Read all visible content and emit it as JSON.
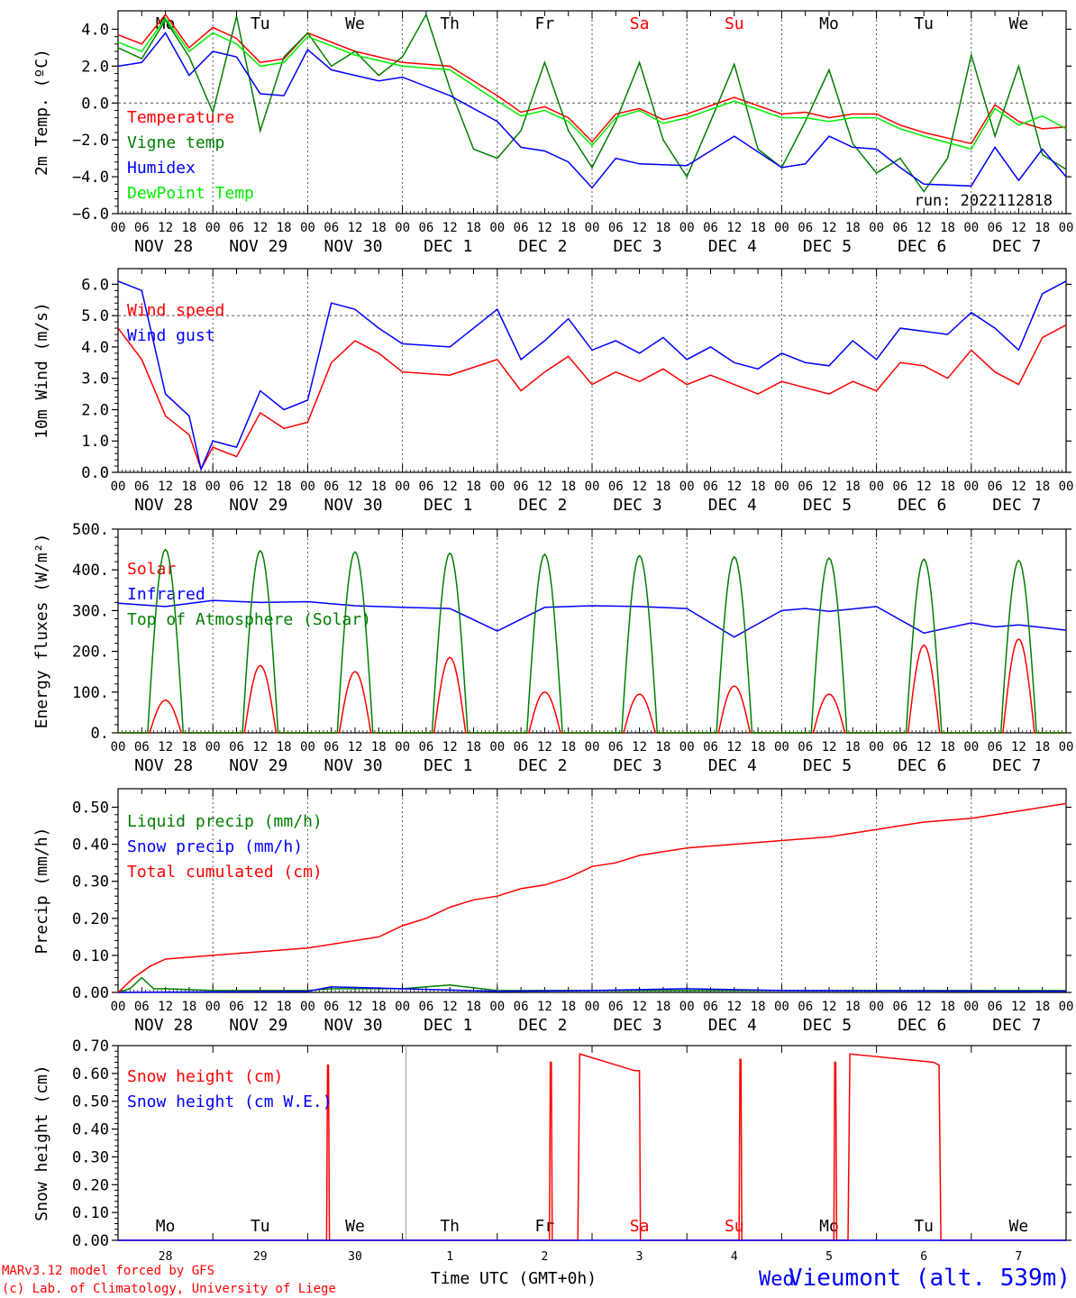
{
  "meta": {
    "run_label": "run: 2022112818",
    "station_title": "Vieumont (alt. 539m)",
    "footer_line1": "MARv3.12 model forced by GFS",
    "footer_line2": "(c) Lab. of Climatology, University of Liege",
    "time_axis_label": "Time UTC (GMT+0h)",
    "station_overlay": "Wed"
  },
  "colors": {
    "red": "#ff0000",
    "dark_green": "#007f00",
    "blue": "#0000ff",
    "light_green": "#00ee00",
    "grid": "#555555",
    "axis": "#000000"
  },
  "axis": {
    "days": 10,
    "hour_ticks": [
      "00",
      "06",
      "12",
      "18"
    ],
    "day_labels": [
      "NOV 28",
      "NOV 29",
      "NOV 30",
      "DEC  1",
      "DEC  2",
      "DEC  3",
      "DEC  4",
      "DEC  5",
      "DEC  6",
      "DEC  7"
    ],
    "weekdays": [
      "Mo",
      "Tu",
      "We",
      "Th",
      "Fr",
      "Sa",
      "Su",
      "Mo",
      "Tu",
      "We"
    ],
    "weekday_colors": [
      "#000000",
      "#000000",
      "#000000",
      "#000000",
      "#000000",
      "#ff0000",
      "#ff0000",
      "#000000",
      "#000000",
      "#000000"
    ],
    "day_numbers": [
      "28",
      "29",
      "30",
      "1",
      "2",
      "3",
      "4",
      "5",
      "6",
      "7"
    ]
  },
  "chart_data": [
    {
      "type": "line",
      "ylabel": "2m Temp. (ºC)",
      "ylim": [
        -6,
        5
      ],
      "yticks": [
        4,
        2,
        0,
        -2,
        -4,
        -6
      ],
      "ytick_labels": [
        "4.0",
        "2.0",
        "0.0",
        "−2.0",
        "−4.0",
        "−6.0"
      ],
      "ref_lines": [
        0
      ],
      "x_units": "hours from Nov 28 00 UTC",
      "series": [
        {
          "name": "Temperature",
          "color": "#ff0000",
          "x": [
            0,
            6,
            12,
            18,
            24,
            30,
            36,
            42,
            48,
            60,
            72,
            84,
            96,
            102,
            108,
            114,
            120,
            126,
            132,
            138,
            144,
            156,
            168,
            174,
            180,
            186,
            192,
            198,
            204,
            216,
            222,
            228,
            234,
            240
          ],
          "y": [
            3.7,
            3.2,
            4.8,
            3.0,
            4.1,
            3.5,
            2.2,
            2.4,
            3.8,
            2.8,
            2.2,
            2.0,
            0.4,
            -0.5,
            -0.2,
            -0.8,
            -2.1,
            -0.6,
            -0.3,
            -0.9,
            -0.6,
            0.3,
            -0.6,
            -0.5,
            -0.8,
            -0.6,
            -0.6,
            -1.2,
            -1.6,
            -2.2,
            -0.1,
            -1.0,
            -1.4,
            -1.3
          ]
        },
        {
          "name": "Vigne temp",
          "color": "#007f00",
          "x": [
            0,
            6,
            12,
            18,
            24,
            30,
            36,
            42,
            48,
            54,
            60,
            66,
            72,
            78,
            84,
            90,
            96,
            102,
            108,
            114,
            120,
            126,
            132,
            138,
            144,
            150,
            156,
            162,
            168,
            174,
            180,
            186,
            192,
            198,
            204,
            210,
            216,
            222,
            228,
            234,
            240
          ],
          "y": [
            3.0,
            2.4,
            4.5,
            2.5,
            -0.5,
            4.7,
            -1.5,
            2.5,
            3.8,
            2.0,
            2.8,
            1.5,
            2.5,
            4.8,
            0.8,
            -2.5,
            -3.0,
            -1.5,
            2.2,
            -1.5,
            -3.5,
            -1.0,
            2.2,
            -2.0,
            -4.0,
            -1.0,
            2.1,
            -2.5,
            -3.5,
            -1.0,
            1.8,
            -2.2,
            -3.8,
            -3.0,
            -4.8,
            -3.0,
            2.6,
            -1.8,
            2.0,
            -2.8,
            -3.6
          ]
        },
        {
          "name": "Humidex",
          "color": "#0000ff",
          "x": [
            0,
            6,
            12,
            18,
            24,
            30,
            36,
            42,
            48,
            54,
            60,
            66,
            72,
            84,
            96,
            102,
            108,
            114,
            120,
            126,
            132,
            144,
            156,
            168,
            174,
            180,
            186,
            192,
            198,
            204,
            216,
            222,
            228,
            234,
            240
          ],
          "y": [
            2.0,
            2.2,
            3.8,
            1.5,
            2.8,
            2.5,
            0.5,
            0.4,
            2.9,
            1.8,
            1.5,
            1.2,
            1.4,
            0.4,
            -1.0,
            -2.4,
            -2.6,
            -3.2,
            -4.6,
            -3.0,
            -3.3,
            -3.4,
            -1.8,
            -3.5,
            -3.3,
            -1.8,
            -2.4,
            -2.5,
            -3.5,
            -4.4,
            -4.5,
            -2.4,
            -4.2,
            -2.5,
            -4.0
          ]
        },
        {
          "name": "DewPoint Temp",
          "color": "#00ee00",
          "x": [
            0,
            6,
            12,
            18,
            24,
            30,
            36,
            42,
            48,
            60,
            72,
            84,
            96,
            102,
            108,
            114,
            120,
            126,
            132,
            138,
            144,
            156,
            168,
            174,
            180,
            186,
            192,
            198,
            204,
            216,
            222,
            228,
            234,
            240
          ],
          "y": [
            3.3,
            2.8,
            4.6,
            2.8,
            3.8,
            3.2,
            2.0,
            2.2,
            3.6,
            2.6,
            2.0,
            1.8,
            0.1,
            -0.7,
            -0.4,
            -1.0,
            -2.3,
            -0.8,
            -0.4,
            -1.1,
            -0.8,
            0.1,
            -0.8,
            -0.8,
            -1.0,
            -0.8,
            -0.8,
            -1.4,
            -1.8,
            -2.5,
            -0.3,
            -1.2,
            -0.7,
            -1.4
          ]
        }
      ]
    },
    {
      "type": "line",
      "ylabel": "10m Wind (m/s)",
      "ylim": [
        0,
        6.5
      ],
      "yticks": [
        6,
        5,
        4,
        3,
        2,
        1,
        0
      ],
      "ytick_labels": [
        "6.0",
        "5.0",
        "4.0",
        "3.0",
        "2.0",
        "1.0",
        "0.0"
      ],
      "ref_lines": [
        5
      ],
      "x_units": "hours from Nov 28 00 UTC",
      "series": [
        {
          "name": "Wind speed",
          "color": "#ff0000",
          "x": [
            0,
            6,
            12,
            18,
            21,
            24,
            30,
            36,
            42,
            48,
            54,
            60,
            66,
            72,
            84,
            96,
            102,
            108,
            114,
            120,
            126,
            132,
            138,
            144,
            150,
            156,
            162,
            168,
            174,
            180,
            186,
            192,
            198,
            204,
            210,
            216,
            222,
            228,
            234,
            240
          ],
          "y": [
            4.6,
            3.6,
            1.8,
            1.2,
            0.1,
            0.8,
            0.5,
            1.9,
            1.4,
            1.6,
            3.5,
            4.2,
            3.8,
            3.2,
            3.1,
            3.6,
            2.6,
            3.2,
            3.7,
            2.8,
            3.2,
            2.9,
            3.3,
            2.8,
            3.1,
            2.8,
            2.5,
            2.9,
            2.7,
            2.5,
            2.9,
            2.6,
            3.5,
            3.4,
            3.0,
            3.9,
            3.2,
            2.8,
            4.3,
            4.7
          ]
        },
        {
          "name": "Wind gust",
          "color": "#0000ff",
          "x": [
            0,
            6,
            12,
            18,
            21,
            24,
            30,
            36,
            42,
            48,
            54,
            60,
            66,
            72,
            84,
            96,
            102,
            108,
            114,
            120,
            126,
            132,
            138,
            144,
            150,
            156,
            162,
            168,
            174,
            180,
            186,
            192,
            198,
            204,
            210,
            216,
            222,
            228,
            234,
            240
          ],
          "y": [
            6.1,
            5.8,
            2.5,
            1.8,
            0.1,
            1.0,
            0.8,
            2.6,
            2.0,
            2.3,
            5.4,
            5.2,
            4.6,
            4.1,
            4.0,
            5.2,
            3.6,
            4.2,
            4.9,
            3.9,
            4.2,
            3.8,
            4.3,
            3.6,
            4.0,
            3.5,
            3.3,
            3.8,
            3.5,
            3.4,
            4.2,
            3.6,
            4.6,
            4.5,
            4.4,
            5.1,
            4.6,
            3.9,
            5.7,
            6.1
          ]
        }
      ]
    },
    {
      "type": "line",
      "ylabel": "Energy fluxes (W/m²)",
      "ylim": [
        0,
        500
      ],
      "yticks": [
        500,
        400,
        300,
        200,
        100,
        0
      ],
      "ytick_labels": [
        "500.",
        "400.",
        "300.",
        "200.",
        "100.",
        "0."
      ],
      "x_units": "hours from Nov 28 00 UTC",
      "daily_peaks": {
        "Top of Atmosphere (Solar)": [
          450,
          447,
          444,
          441,
          438,
          435,
          432,
          429,
          426,
          423
        ],
        "Solar": [
          80,
          165,
          150,
          185,
          100,
          95,
          115,
          95,
          215,
          230
        ]
      },
      "series": [
        {
          "name": "Solar",
          "color": "#ff0000",
          "x": [
            0,
            8,
            12,
            16,
            24
          ],
          "y": [
            0,
            0,
            80,
            0,
            0
          ]
        },
        {
          "name": "Infrared",
          "color": "#0000ff",
          "x": [
            0,
            12,
            24,
            36,
            48,
            60,
            72,
            84,
            96,
            108,
            120,
            132,
            144,
            156,
            168,
            174,
            180,
            192,
            204,
            216,
            222,
            228,
            240
          ],
          "y": [
            318,
            310,
            325,
            320,
            322,
            312,
            308,
            305,
            250,
            308,
            312,
            310,
            305,
            235,
            300,
            305,
            298,
            310,
            245,
            270,
            260,
            265,
            252
          ]
        },
        {
          "name": "Top of Atmosphere (Solar)",
          "color": "#007f00",
          "x": [
            0,
            7.5,
            12,
            16.5,
            24
          ],
          "y": [
            0,
            0,
            450,
            0,
            0
          ]
        }
      ]
    },
    {
      "type": "line",
      "ylabel": "Precip (mm/h)",
      "ylim": [
        0,
        0.55
      ],
      "yticks": [
        0.5,
        0.4,
        0.3,
        0.2,
        0.1,
        0.0
      ],
      "ytick_labels": [
        "0.50",
        "0.40",
        "0.30",
        "0.20",
        "0.10",
        "0.00"
      ],
      "x_units": "hours from Nov 28 00 UTC",
      "series": [
        {
          "name": "Liquid precip (mm/h)",
          "color": "#007f00",
          "x": [
            0,
            3,
            6,
            9,
            12,
            24,
            48,
            54,
            72,
            84,
            96,
            120,
            240
          ],
          "y": [
            0,
            0.01,
            0.04,
            0.01,
            0.01,
            0.005,
            0.005,
            0.01,
            0.01,
            0.02,
            0.005,
            0.005,
            0.005
          ]
        },
        {
          "name": "Snow precip (mm/h)",
          "color": "#0000ff",
          "x": [
            0,
            48,
            54,
            96,
            120,
            144,
            168,
            240
          ],
          "y": [
            0,
            0.003,
            0.015,
            0.003,
            0.005,
            0.01,
            0.005,
            0.003
          ]
        },
        {
          "name": "Total cumulated (cm)",
          "color": "#ff0000",
          "x": [
            0,
            4,
            8,
            12,
            24,
            36,
            48,
            54,
            66,
            72,
            78,
            84,
            90,
            96,
            102,
            108,
            114,
            120,
            126,
            132,
            138,
            144,
            156,
            168,
            180,
            192,
            204,
            216,
            228,
            240
          ],
          "y": [
            0,
            0.04,
            0.07,
            0.09,
            0.1,
            0.11,
            0.12,
            0.13,
            0.15,
            0.18,
            0.2,
            0.23,
            0.25,
            0.26,
            0.28,
            0.29,
            0.31,
            0.34,
            0.35,
            0.37,
            0.38,
            0.39,
            0.4,
            0.41,
            0.42,
            0.44,
            0.46,
            0.47,
            0.49,
            0.51
          ]
        }
      ]
    },
    {
      "type": "line",
      "ylabel": "Snow height (cm)",
      "ylim": [
        0,
        0.7
      ],
      "yticks": [
        0.7,
        0.6,
        0.5,
        0.4,
        0.3,
        0.2,
        0.1,
        0.0
      ],
      "ytick_labels": [
        "0.70",
        "0.60",
        "0.50",
        "0.40",
        "0.30",
        "0.20",
        "0.10",
        "0.00"
      ],
      "x_units": "days from Nov 27 12 UTC",
      "series": [
        {
          "name": "Snow height (cm)",
          "color": "#ff0000",
          "x": [
            0,
            2.2,
            2.21,
            2.22,
            2.23,
            4.55,
            4.56,
            4.57,
            4.58,
            4.85,
            4.87,
            5.45,
            5.5,
            5.51,
            6.55,
            6.56,
            6.57,
            6.58,
            7.55,
            7.56,
            7.57,
            7.58,
            7.7,
            7.72,
            8.6,
            8.66,
            8.68,
            10.0
          ],
          "y": [
            0,
            0,
            0.63,
            0.63,
            0,
            0,
            0.64,
            0.64,
            0,
            0,
            0.67,
            0.61,
            0.61,
            0,
            0,
            0.65,
            0.65,
            0,
            0,
            0.64,
            0.64,
            0,
            0,
            0.67,
            0.64,
            0.63,
            0,
            0
          ]
        },
        {
          "name": "Snow height (cm W.E.)",
          "color": "#0000ff",
          "x": [
            0,
            10
          ],
          "y": [
            0,
            0
          ]
        }
      ]
    }
  ]
}
